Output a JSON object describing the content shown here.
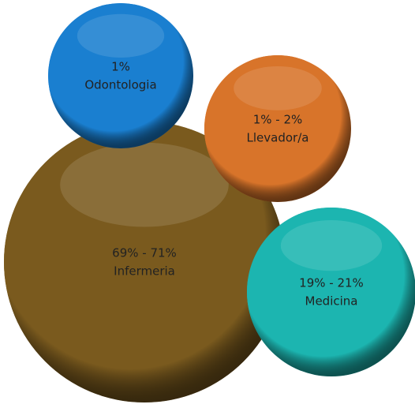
{
  "chart_data": {
    "type": "bubble",
    "categories": [
      "Odontologia",
      "Llevador/a",
      "Infermeria",
      "Medicina"
    ],
    "low": [
      1,
      1,
      69,
      19
    ],
    "high": [
      1,
      2,
      71,
      21
    ],
    "value_labels": [
      "1%",
      "1% - 2%",
      "69% - 71%",
      "19% - 21%"
    ],
    "colors": [
      "#1a7fd0",
      "#d8742a",
      "#7a5a1e",
      "#1cb5b0"
    ]
  }
}
